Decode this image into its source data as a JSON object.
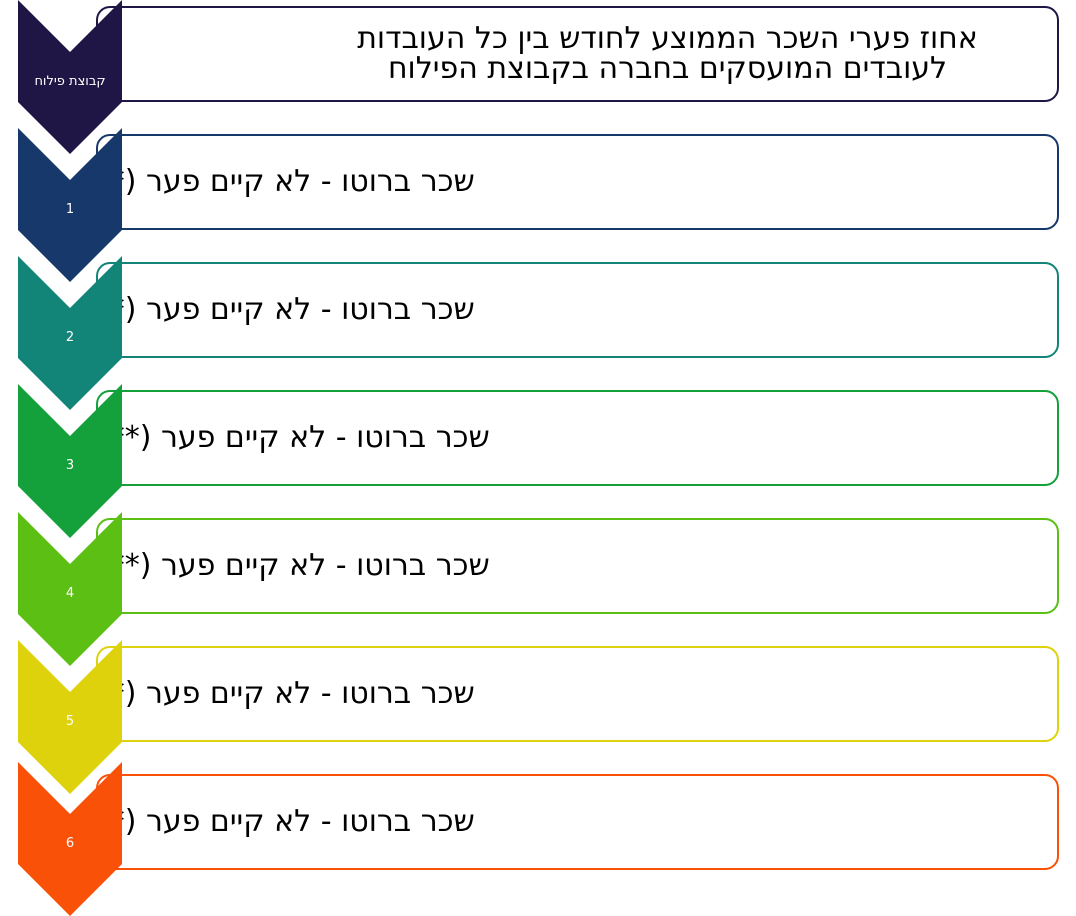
{
  "header": {
    "chevron_label": "קבוצת פילוח",
    "title_line1": "אחוז פערי השכר הממוצע לחודש בין כל העובדות",
    "title_line2": "לעובדים המועסקים בחברה בקבוצת הפילוח"
  },
  "rows": [
    {
      "label": "1",
      "text": "שכר ברוטו - לא קיים פער (*)"
    },
    {
      "label": "2",
      "text": "שכר ברוטו - לא קיים פער (*)"
    },
    {
      "label": "3",
      "text": "שכר ברוטו - לא קיים פער (**)"
    },
    {
      "label": "4",
      "text": "שכר ברוטו - לא קיים פער (**)"
    },
    {
      "label": "5",
      "text": "שכר ברוטו - לא קיים פער (*)"
    },
    {
      "label": "6",
      "text": "שכר ברוטו - לא קיים פער (*)"
    }
  ],
  "colors": {
    "header": "#1f1646",
    "rows": [
      "#17386a",
      "#128478",
      "#14a03a",
      "#5cbf14",
      "#ddd20c",
      "#fa5108"
    ]
  }
}
